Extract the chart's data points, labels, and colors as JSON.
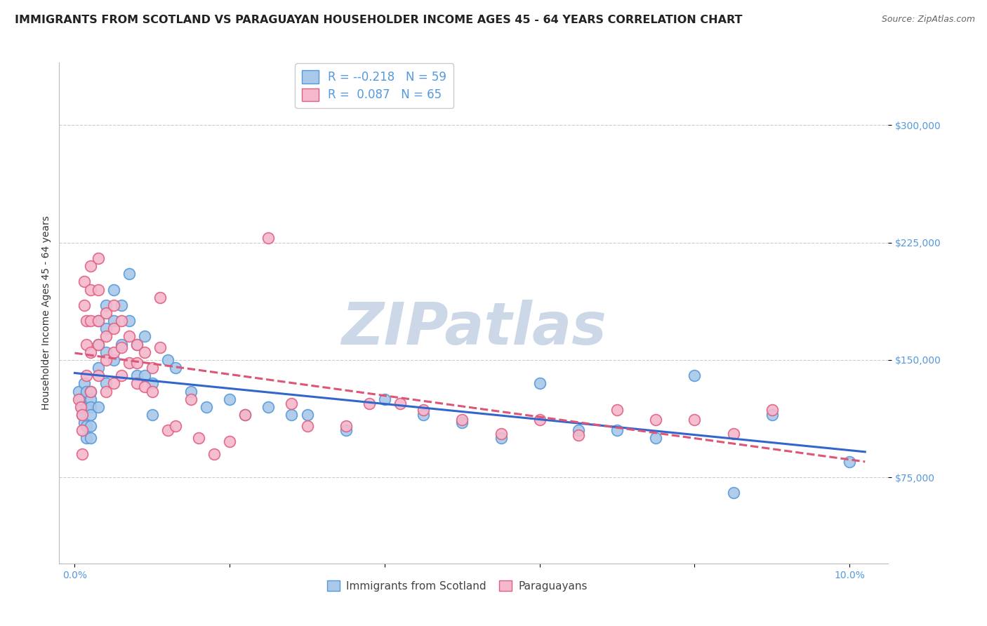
{
  "title": "IMMIGRANTS FROM SCOTLAND VS PARAGUAYAN HOUSEHOLDER INCOME AGES 45 - 64 YEARS CORRELATION CHART",
  "source": "Source: ZipAtlas.com",
  "ylabel": "Householder Income Ages 45 - 64 years",
  "y_ticks": [
    75000,
    150000,
    225000,
    300000
  ],
  "y_tick_labels": [
    "$75,000",
    "$150,000",
    "$225,000",
    "$300,000"
  ],
  "xlim": [
    -0.002,
    0.105
  ],
  "ylim": [
    20000,
    340000
  ],
  "legend_r1": "-0.218",
  "legend_n1": "59",
  "legend_r2": "0.087",
  "legend_n2": "65",
  "color_scotland_fill": "#aac8e8",
  "color_scotland_edge": "#5599dd",
  "color_paraguay_fill": "#f5b8cc",
  "color_paraguay_edge": "#e06080",
  "color_line_scotland": "#3366cc",
  "color_line_paraguay": "#dd5577",
  "background_color": "#ffffff",
  "grid_color": "#cccccc",
  "title_fontsize": 11.5,
  "axis_label_fontsize": 10,
  "tick_fontsize": 10,
  "watermark_color": "#ccd8e8",
  "watermark_fontsize": 60,
  "scotland_x": [
    0.0005,
    0.0008,
    0.001,
    0.001,
    0.0012,
    0.0012,
    0.0015,
    0.0015,
    0.0015,
    0.0015,
    0.002,
    0.002,
    0.002,
    0.002,
    0.002,
    0.002,
    0.003,
    0.003,
    0.003,
    0.003,
    0.004,
    0.004,
    0.004,
    0.004,
    0.005,
    0.005,
    0.005,
    0.006,
    0.006,
    0.007,
    0.007,
    0.008,
    0.008,
    0.009,
    0.009,
    0.01,
    0.01,
    0.012,
    0.013,
    0.015,
    0.017,
    0.02,
    0.022,
    0.025,
    0.028,
    0.03,
    0.035,
    0.04,
    0.045,
    0.05,
    0.055,
    0.06,
    0.065,
    0.07,
    0.075,
    0.08,
    0.085,
    0.09,
    0.1
  ],
  "scotland_y": [
    130000,
    125000,
    120000,
    115000,
    135000,
    110000,
    130000,
    120000,
    108000,
    100000,
    130000,
    125000,
    120000,
    115000,
    108000,
    100000,
    175000,
    160000,
    145000,
    120000,
    185000,
    170000,
    155000,
    135000,
    195000,
    175000,
    150000,
    185000,
    160000,
    205000,
    175000,
    160000,
    140000,
    165000,
    140000,
    135000,
    115000,
    150000,
    145000,
    130000,
    120000,
    125000,
    115000,
    120000,
    115000,
    115000,
    105000,
    125000,
    115000,
    110000,
    100000,
    135000,
    105000,
    105000,
    100000,
    140000,
    65000,
    115000,
    85000
  ],
  "paraguay_x": [
    0.0005,
    0.0008,
    0.001,
    0.001,
    0.001,
    0.0012,
    0.0012,
    0.0015,
    0.0015,
    0.0015,
    0.002,
    0.002,
    0.002,
    0.002,
    0.002,
    0.003,
    0.003,
    0.003,
    0.003,
    0.003,
    0.004,
    0.004,
    0.004,
    0.004,
    0.005,
    0.005,
    0.005,
    0.005,
    0.006,
    0.006,
    0.006,
    0.007,
    0.007,
    0.008,
    0.008,
    0.008,
    0.009,
    0.009,
    0.01,
    0.01,
    0.011,
    0.011,
    0.012,
    0.013,
    0.015,
    0.016,
    0.018,
    0.02,
    0.022,
    0.025,
    0.028,
    0.03,
    0.035,
    0.038,
    0.042,
    0.045,
    0.05,
    0.055,
    0.06,
    0.065,
    0.07,
    0.075,
    0.08,
    0.085,
    0.09
  ],
  "paraguay_y": [
    125000,
    120000,
    115000,
    105000,
    90000,
    200000,
    185000,
    175000,
    160000,
    140000,
    210000,
    195000,
    175000,
    155000,
    130000,
    215000,
    195000,
    175000,
    160000,
    140000,
    180000,
    165000,
    150000,
    130000,
    185000,
    170000,
    155000,
    135000,
    175000,
    158000,
    140000,
    165000,
    148000,
    160000,
    148000,
    135000,
    155000,
    133000,
    145000,
    130000,
    190000,
    158000,
    105000,
    108000,
    125000,
    100000,
    90000,
    98000,
    115000,
    228000,
    122000,
    108000,
    108000,
    122000,
    122000,
    118000,
    112000,
    103000,
    112000,
    102000,
    118000,
    112000,
    112000,
    103000,
    118000
  ]
}
